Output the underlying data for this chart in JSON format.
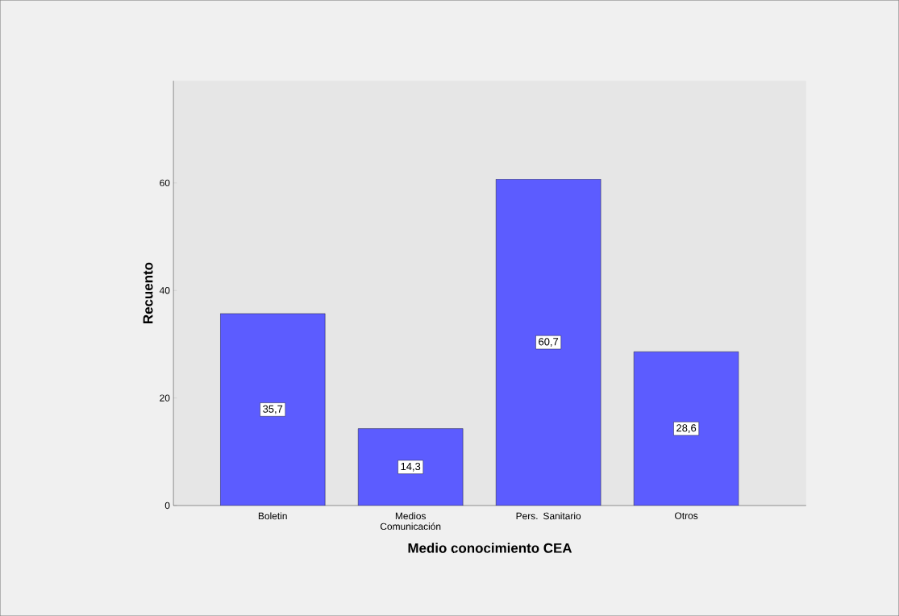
{
  "chart_data": {
    "type": "bar",
    "xlabel": "Medio conocimiento CEA",
    "ylabel": "Recuento",
    "categories": [
      "Boletin",
      "Medios Comunicación",
      "Pers. Sanitario",
      "Otros"
    ],
    "values": [
      35.7,
      14.3,
      60.7,
      28.6
    ],
    "value_labels": [
      "35,7",
      "14,3",
      "60,7",
      "28,6"
    ],
    "color": "#5c5cff",
    "ylim": [
      0,
      79
    ],
    "yticks": [
      0,
      20,
      40,
      60
    ],
    "grid": false
  }
}
